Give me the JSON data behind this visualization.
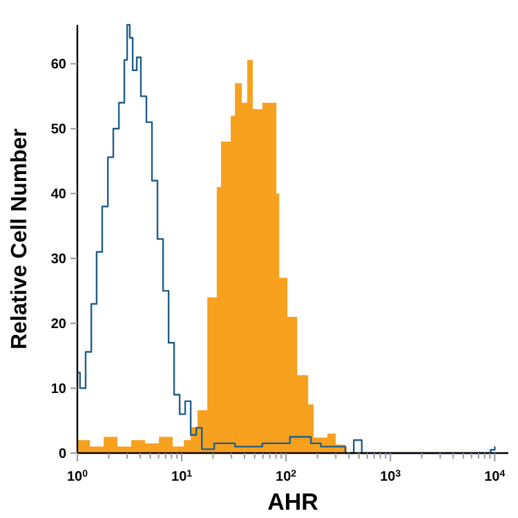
{
  "chart_data": {
    "type": "area",
    "xlabel": "AHR",
    "ylabel": "Relative Cell Number",
    "log": "x",
    "grid": false,
    "xlim": [
      1,
      13500
    ],
    "ylim": [
      0,
      66
    ],
    "xticks": [
      {
        "value": 1,
        "label": "10$^{0}$"
      },
      {
        "value": 2,
        "label": null
      },
      {
        "value": 3,
        "label": null
      },
      {
        "value": 4,
        "label": null
      },
      {
        "value": 5,
        "label": null
      },
      {
        "value": 6,
        "label": null
      },
      {
        "value": 7,
        "label": null
      },
      {
        "value": 8,
        "label": null
      },
      {
        "value": 9,
        "label": null
      },
      {
        "value": 10,
        "label": "10$^{1}$"
      },
      {
        "value": 20,
        "label": null
      },
      {
        "value": 30,
        "label": null
      },
      {
        "value": 40,
        "label": null
      },
      {
        "value": 50,
        "label": null
      },
      {
        "value": 60,
        "label": null
      },
      {
        "value": 70,
        "label": null
      },
      {
        "value": 80,
        "label": null
      },
      {
        "value": 90,
        "label": null
      },
      {
        "value": 100,
        "label": "10$^{2}$"
      },
      {
        "value": 200,
        "label": null
      },
      {
        "value": 300,
        "label": null
      },
      {
        "value": 400,
        "label": null
      },
      {
        "value": 500,
        "label": null
      },
      {
        "value": 600,
        "label": null
      },
      {
        "value": 700,
        "label": null
      },
      {
        "value": 800,
        "label": null
      },
      {
        "value": 900,
        "label": null
      },
      {
        "value": 1000,
        "label": "10$^{3}$"
      },
      {
        "value": 2000,
        "label": null
      },
      {
        "value": 3000,
        "label": null
      },
      {
        "value": 4000,
        "label": null
      },
      {
        "value": 5000,
        "label": null
      },
      {
        "value": 6000,
        "label": null
      },
      {
        "value": 7000,
        "label": null
      },
      {
        "value": 8000,
        "label": null
      },
      {
        "value": 9000,
        "label": null
      },
      {
        "value": 10000,
        "label": "10$^{4}$"
      }
    ],
    "yticks": [
      0,
      10,
      20,
      30,
      40,
      50,
      60
    ],
    "series": [
      {
        "color": "#f7a11e",
        "x": [
          1.0,
          1.32,
          1.79,
          2.42,
          3.28,
          4.46,
          6.05,
          8.2,
          10.5,
          12.2,
          14.2,
          17.6,
          21.7,
          23.8,
          29.5,
          32.4,
          37.7,
          42.5,
          48.0,
          59.3,
          75.9,
          80.8,
          86,
          103,
          128,
          163,
          184,
          249,
          299,
          370,
          381
        ],
        "values": [
          2,
          1,
          2.5,
          1,
          2,
          1.5,
          2.5,
          1,
          2,
          4,
          6.6,
          24,
          41,
          48,
          52,
          57,
          54,
          60.6,
          53,
          54,
          54,
          40,
          27,
          21,
          12,
          7.5,
          2.4,
          3,
          1.3,
          1,
          0
        ]
      },
      {
        "type": "step",
        "color": "#1f5d8c",
        "x": [
          1.0,
          1.06,
          1.2,
          1.36,
          1.53,
          1.73,
          1.96,
          2.21,
          2.5,
          2.82,
          3.0,
          3.18,
          3.39,
          3.71,
          4.06,
          4.59,
          5.19,
          5.86,
          6.63,
          7.49,
          8.46,
          9.56,
          10.8,
          12.2,
          13.8,
          15.6,
          20.5,
          32.4,
          59.3,
          109,
          173,
          215,
          370,
          446,
          532,
          929,
          3140,
          9140,
          10000
        ],
        "values": [
          12.4,
          10,
          15.6,
          23,
          31,
          38,
          45.6,
          50,
          54,
          60.6,
          66,
          64,
          59,
          61,
          55,
          51,
          42,
          33,
          25,
          17,
          9,
          6,
          8,
          2.8,
          3.9,
          0.6,
          1.5,
          1,
          1.5,
          2.5,
          1.5,
          1,
          0,
          2,
          0,
          0,
          0,
          0.5,
          1
        ]
      }
    ]
  }
}
